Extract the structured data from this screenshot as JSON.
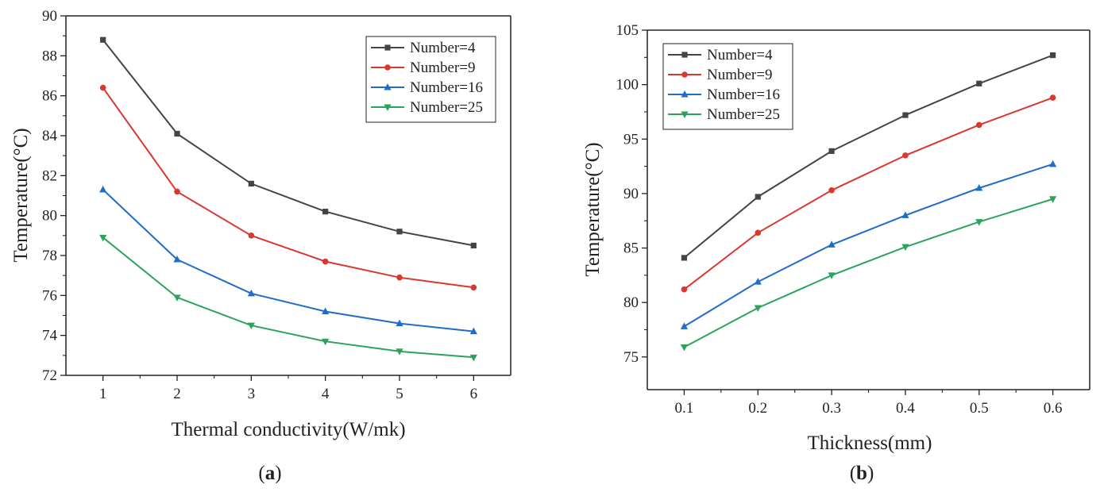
{
  "chart_data": [
    {
      "type": "line",
      "panel": "a",
      "caption_open": "(",
      "caption_letter": "a",
      "caption_close": ")",
      "xlabel": "Thermal conductivity(W/mk)",
      "ylabel": "Temperature(°C)",
      "xlim": [
        0.5,
        6.5
      ],
      "ylim": [
        72,
        90
      ],
      "xticks": [
        1,
        2,
        3,
        4,
        5,
        6
      ],
      "yticks": [
        72,
        74,
        76,
        78,
        80,
        82,
        84,
        86,
        88,
        90
      ],
      "legend_position": "top-right",
      "x": [
        1,
        2,
        3,
        4,
        5,
        6
      ],
      "series": [
        {
          "name": "Number=4",
          "color": "#444444",
          "marker": "square",
          "values": [
            88.8,
            84.1,
            81.6,
            80.2,
            79.2,
            78.5
          ]
        },
        {
          "name": "Number=9",
          "color": "#d9382f",
          "marker": "circle",
          "values": [
            86.4,
            81.2,
            79.0,
            77.7,
            76.9,
            76.4
          ]
        },
        {
          "name": "Number=16",
          "color": "#1f6cc9",
          "marker": "triangle-up",
          "values": [
            81.3,
            77.8,
            76.1,
            75.2,
            74.6,
            74.2
          ]
        },
        {
          "name": "Number=25",
          "color": "#2ca35a",
          "marker": "triangle-down",
          "values": [
            78.9,
            75.9,
            74.5,
            73.7,
            73.2,
            72.9
          ]
        }
      ]
    },
    {
      "type": "line",
      "panel": "b",
      "caption_open": "(",
      "caption_letter": "b",
      "caption_close": ")",
      "xlabel": "Thickness(mm)",
      "ylabel": "Temperature(°C)",
      "xlim": [
        0.05,
        0.65
      ],
      "ylim": [
        72,
        105
      ],
      "xticks": [
        0.1,
        0.2,
        0.3,
        0.4,
        0.5,
        0.6
      ],
      "yticks": [
        75,
        80,
        85,
        90,
        95,
        100,
        105
      ],
      "legend_position": "top-left",
      "x": [
        0.1,
        0.2,
        0.3,
        0.4,
        0.5,
        0.6
      ],
      "series": [
        {
          "name": "Number=4",
          "color": "#444444",
          "marker": "square",
          "values": [
            84.1,
            89.7,
            93.9,
            97.2,
            100.1,
            102.7
          ]
        },
        {
          "name": "Number=9",
          "color": "#d9382f",
          "marker": "circle",
          "values": [
            81.2,
            86.4,
            90.3,
            93.5,
            96.3,
            98.8
          ]
        },
        {
          "name": "Number=16",
          "color": "#1f6cc9",
          "marker": "triangle-up",
          "values": [
            77.8,
            81.9,
            85.3,
            88.0,
            90.5,
            92.7
          ]
        },
        {
          "name": "Number=25",
          "color": "#2ca35a",
          "marker": "triangle-down",
          "values": [
            75.9,
            79.5,
            82.5,
            85.1,
            87.4,
            89.5
          ]
        }
      ]
    }
  ]
}
